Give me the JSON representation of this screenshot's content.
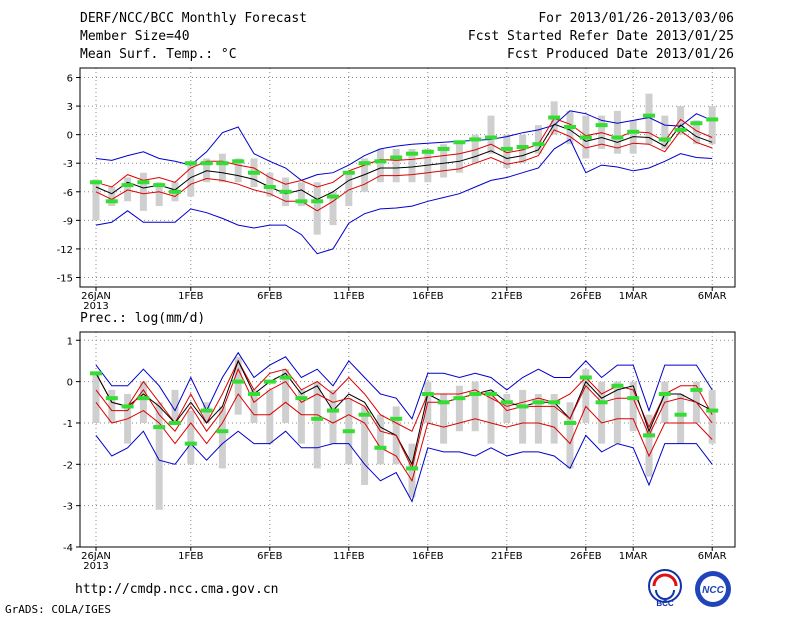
{
  "header": {
    "title": "DERF/NCC/BCC Monthly Forecast",
    "member": "Member Size=40",
    "variable": "Mean Surf. Temp.: °C",
    "period": "For 2013/01/26-2013/03/06",
    "started": "Fcst Started Refer Date 2013/01/25",
    "produced": "Fcst Produced Date 2013/01/26"
  },
  "prec_label": "Prec.: log(mm/d)",
  "footer": {
    "url": "http://cmdp.ncc.cma.gov.cn",
    "grads": "GrADS: COLA/IGES"
  },
  "logos": {
    "bcc": "BCC",
    "ncc": "NCC"
  },
  "colors": {
    "blue": "#0000cc",
    "red": "#dd0000",
    "black": "#000000",
    "green": "#33dd33",
    "gray": "#cfcfcf",
    "grid": "#888888"
  },
  "chart_data": [
    {
      "name": "temperature",
      "type": "line",
      "title": "Mean Surf. Temp.: °C",
      "ylim": [
        -16,
        7
      ],
      "yticks": [
        6,
        3,
        0,
        -3,
        -6,
        -9,
        -12,
        -15
      ],
      "x_tick_labels": [
        {
          "day": 0,
          "label": "26JAN",
          "sub": "2013"
        },
        {
          "day": 6,
          "label": "1FEB"
        },
        {
          "day": 11,
          "label": "6FEB"
        },
        {
          "day": 16,
          "label": "11FEB"
        },
        {
          "day": 21,
          "label": "16FEB"
        },
        {
          "day": 26,
          "label": "21FEB"
        },
        {
          "day": 31,
          "label": "26FEB"
        },
        {
          "day": 34,
          "label": "1MAR"
        },
        {
          "day": 39,
          "label": "6MAR"
        }
      ],
      "series": [
        {
          "name": "max",
          "color": "#0000cc",
          "values": [
            -2.5,
            -2.7,
            -2.2,
            -1.8,
            -2.5,
            -2.8,
            -3.2,
            -1.8,
            0.2,
            0.8,
            -2,
            -2.8,
            -3.5,
            -4.8,
            -4.2,
            -4,
            -3.2,
            -2.2,
            -1.5,
            -1.2,
            -1,
            -0.9,
            -0.8,
            -0.7,
            -0.6,
            -0.5,
            -0.2,
            0.2,
            0.5,
            1,
            2.5,
            2.2,
            1.5,
            1.2,
            1.5,
            1.8,
            1,
            0.9,
            2.2,
            1.5
          ]
        },
        {
          "name": "upper",
          "color": "#dd0000",
          "values": [
            -5,
            -5.5,
            -4.2,
            -4.8,
            -4.5,
            -5,
            -3.5,
            -2.8,
            -2.8,
            -3.2,
            -3.5,
            -4.5,
            -5.2,
            -4.8,
            -5.5,
            -5,
            -3.8,
            -3.2,
            -2.6,
            -2.7,
            -2.6,
            -2.4,
            -2.2,
            -2,
            -1.6,
            -1,
            -1.9,
            -1.6,
            -1,
            1.7,
            1.1,
            -0.1,
            0.2,
            -0.3,
            0.3,
            0.2,
            -0.7,
            1.6,
            0.4,
            -0.3
          ]
        },
        {
          "name": "mean",
          "color": "#000000",
          "values": [
            -5.5,
            -6.2,
            -5,
            -5.6,
            -5.3,
            -5.8,
            -4.5,
            -3.8,
            -4,
            -4.3,
            -4.7,
            -5.5,
            -6.2,
            -5.8,
            -6.8,
            -6,
            -4.8,
            -4.2,
            -3.5,
            -3.5,
            -3.4,
            -3.2,
            -3,
            -2.8,
            -2.3,
            -1.7,
            -2.5,
            -2.2,
            -1.6,
            1.1,
            0.5,
            -0.7,
            -0.3,
            -0.8,
            -0.2,
            -0.3,
            -1.2,
            1,
            -0.2,
            -0.8
          ]
        },
        {
          "name": "lower",
          "color": "#dd0000",
          "values": [
            -6,
            -6.8,
            -5.8,
            -6.2,
            -6,
            -6.5,
            -5.2,
            -4.6,
            -4.8,
            -5.2,
            -5.8,
            -6.2,
            -7,
            -7,
            -8,
            -7,
            -5.8,
            -5.2,
            -4.3,
            -4.3,
            -4.2,
            -4,
            -3.8,
            -3.6,
            -3,
            -2.4,
            -3.1,
            -2.8,
            -2.2,
            0.5,
            -0.2,
            -1.4,
            -1,
            -1.4,
            -0.9,
            -1,
            -1.8,
            0.4,
            -0.8,
            -1.4
          ]
        },
        {
          "name": "min",
          "color": "#0000cc",
          "values": [
            -9.5,
            -9.2,
            -8,
            -9.2,
            -9.2,
            -9.2,
            -7.8,
            -8.2,
            -8.8,
            -9.5,
            -9.8,
            -9.5,
            -9.5,
            -10.5,
            -12.5,
            -12,
            -9.3,
            -8.3,
            -7.8,
            -7.7,
            -7.5,
            -7,
            -6.6,
            -6.2,
            -5.5,
            -4.8,
            -4.5,
            -4,
            -3.5,
            -1.5,
            -0.5,
            -4,
            -3.2,
            -3.4,
            -3.8,
            -3.5,
            -2.8,
            -2,
            -2.4,
            -2.5
          ]
        }
      ],
      "bars": [
        [
          -9,
          -4.7
        ],
        [
          -7.5,
          -5.5
        ],
        [
          -7,
          -4.5
        ],
        [
          -8,
          -4
        ],
        [
          -7.5,
          -5
        ],
        [
          -7,
          -5
        ],
        [
          -6.5,
          -3
        ],
        [
          -5,
          -2.5
        ],
        [
          -5,
          -2
        ],
        [
          -5,
          -2.5
        ],
        [
          -5.5,
          -2.5
        ],
        [
          -6.5,
          -4
        ],
        [
          -7.5,
          -4.5
        ],
        [
          -7.5,
          -5
        ],
        [
          -10.5,
          -5
        ],
        [
          -9.5,
          -6
        ],
        [
          -7.5,
          -4
        ],
        [
          -6,
          -2.5
        ],
        [
          -5,
          -1.5
        ],
        [
          -5,
          -1.5
        ],
        [
          -5,
          -1.5
        ],
        [
          -5,
          -1.5
        ],
        [
          -4.5,
          -1
        ],
        [
          -4,
          -1
        ],
        [
          -3,
          0
        ],
        [
          -2,
          2
        ],
        [
          -3.5,
          0
        ],
        [
          -3,
          0
        ],
        [
          -2,
          1
        ],
        [
          0,
          3.5
        ],
        [
          -1,
          2.5
        ],
        [
          -2.5,
          2
        ],
        [
          -1.5,
          2
        ],
        [
          -2,
          2.5
        ],
        [
          -2,
          1.5
        ],
        [
          -1,
          4.3
        ],
        [
          -1.5,
          2
        ],
        [
          0,
          3
        ],
        [
          -1,
          1.5
        ],
        [
          -1,
          3
        ]
      ],
      "markers": [
        -5,
        -7,
        -5.3,
        -5,
        -5.3,
        -6,
        -3,
        -3,
        -3,
        -2.8,
        -4,
        -5.5,
        -6,
        -7,
        -7,
        -6.5,
        -4,
        -3,
        -2.8,
        -2.4,
        -2,
        -1.8,
        -1.5,
        -0.8,
        -0.5,
        -0.3,
        -1.5,
        -1.3,
        -1,
        1.8,
        0.8,
        -0.3,
        1,
        -0.3,
        0.3,
        2,
        -0.5,
        0.5,
        1.2,
        1.6
      ]
    },
    {
      "name": "precipitation",
      "type": "line",
      "title": "Prec.: log(mm/d)",
      "ylim": [
        -4,
        1.2
      ],
      "yticks": [
        1,
        0,
        -1,
        -2,
        -3,
        -4
      ],
      "x_tick_labels": [
        {
          "day": 0,
          "label": "26JAN",
          "sub": "2013"
        },
        {
          "day": 6,
          "label": "1FEB"
        },
        {
          "day": 11,
          "label": "6FEB"
        },
        {
          "day": 16,
          "label": "11FEB"
        },
        {
          "day": 21,
          "label": "16FEB"
        },
        {
          "day": 26,
          "label": "21FEB"
        },
        {
          "day": 31,
          "label": "26FEB"
        },
        {
          "day": 34,
          "label": "1MAR"
        },
        {
          "day": 39,
          "label": "6MAR"
        }
      ],
      "series": [
        {
          "name": "max",
          "color": "#0000cc",
          "values": [
            0.4,
            -0.1,
            -0.1,
            0.3,
            -0.1,
            -0.7,
            0.1,
            -0.7,
            0.1,
            0.7,
            0.1,
            0.4,
            0.6,
            0.1,
            0.3,
            -0.1,
            0.5,
            0.1,
            -0.3,
            -0.4,
            -0.9,
            0.2,
            0.2,
            0.1,
            0.2,
            0.1,
            -0.2,
            0.1,
            0.3,
            0.1,
            0.1,
            0.5,
            0.1,
            0.4,
            0.4,
            -0.7,
            0.4,
            0.4,
            0.4,
            -0.2
          ]
        },
        {
          "name": "upper",
          "color": "#dd0000",
          "values": [
            0.2,
            -0.5,
            -0.6,
            0,
            -0.5,
            -1,
            -0.3,
            -1,
            -0.3,
            0.5,
            -0.2,
            0.2,
            0.3,
            -0.2,
            0,
            -0.3,
            0.1,
            -0.3,
            -0.8,
            -1,
            -1.2,
            -0.3,
            -0.3,
            -0.3,
            -0.2,
            -0.4,
            -0.6,
            -0.5,
            -0.4,
            -0.5,
            -0.3,
            0.1,
            -0.3,
            -0.1,
            -0.2,
            -1.1,
            -0.3,
            -0.1,
            -0.1,
            -0.8
          ]
        },
        {
          "name": "mean",
          "color": "#000000",
          "values": [
            0.2,
            -0.5,
            -0.6,
            -0.3,
            -0.6,
            -1,
            -0.5,
            -1,
            -0.6,
            0.5,
            -0.3,
            0,
            0.2,
            -0.3,
            -0.1,
            -0.7,
            -0.3,
            -0.5,
            -1.1,
            -1.3,
            -2,
            -0.3,
            -0.5,
            -0.4,
            -0.3,
            -0.2,
            -0.5,
            -0.6,
            -0.5,
            -0.5,
            -0.9,
            0,
            -0.4,
            -0.2,
            -0.1,
            -1.2,
            -0.3,
            -0.3,
            -0.5,
            -0.7
          ]
        },
        {
          "name": "lower",
          "color": "#dd0000",
          "values": [
            -0.5,
            -1,
            -0.9,
            -0.7,
            -1,
            -1.5,
            -1,
            -1.5,
            -1,
            -0.3,
            -0.8,
            -0.8,
            -0.5,
            -0.8,
            -0.8,
            -1,
            -0.8,
            -1,
            -1.6,
            -1.8,
            -2.4,
            -1,
            -1.1,
            -1,
            -0.9,
            -1,
            -1.1,
            -1,
            -1,
            -1.1,
            -1.5,
            -0.6,
            -1,
            -0.9,
            -0.9,
            -1.8,
            -1,
            -1,
            -1,
            -1.4
          ]
        },
        {
          "name": "min",
          "color": "#0000cc",
          "values": [
            -1.3,
            -1.8,
            -1.6,
            -1.2,
            -1.9,
            -2,
            -1.5,
            -1.9,
            -1.5,
            -1.2,
            -1.5,
            -1.5,
            -1.2,
            -1.6,
            -1.6,
            -1.5,
            -1.5,
            -2,
            -2.4,
            -2.2,
            -2.9,
            -1.6,
            -1.7,
            -1.7,
            -1.8,
            -1.6,
            -1.8,
            -1.7,
            -1.7,
            -1.8,
            -2.1,
            -1.3,
            -1.7,
            -1.5,
            -1.6,
            -2.5,
            -1.5,
            -1.5,
            -1.5,
            -2
          ]
        },
        {
          "name": "extra",
          "color": "#dd0000",
          "values": [
            -0.2,
            -0.7,
            -0.7,
            -0.2,
            -0.8,
            -1.2,
            -0.6,
            -1.2,
            -0.7,
            0.3,
            -0.5,
            -0.2,
            0,
            -0.5,
            -0.3,
            -0.5,
            -0.4,
            -0.6,
            -1.2,
            -1.3,
            -2.1,
            -0.5,
            -0.5,
            -0.4,
            -0.3,
            -0.3,
            -0.7,
            -0.6,
            -0.6,
            -0.6,
            -0.9,
            -0.1,
            -0.5,
            -0.4,
            -0.4,
            -1.3,
            -0.5,
            -0.4,
            -0.5,
            -1
          ]
        }
      ],
      "bars": [
        [
          -1,
          0.2
        ],
        [
          -1,
          -0.2
        ],
        [
          -1.5,
          -0.3
        ],
        [
          -1,
          0
        ],
        [
          -3.1,
          -0.5
        ],
        [
          -1,
          -0.2
        ],
        [
          -2,
          -0.7
        ],
        [
          -1,
          -0.5
        ],
        [
          -2.1,
          -0.6
        ],
        [
          -0.8,
          0.6
        ],
        [
          -1,
          -0.2
        ],
        [
          -1.5,
          -0.2
        ],
        [
          -1,
          0.3
        ],
        [
          -1.5,
          -0.2
        ],
        [
          -2.1,
          0
        ],
        [
          -1.5,
          -0.2
        ],
        [
          -2,
          -0.4
        ],
        [
          -2.5,
          -0.6
        ],
        [
          -2,
          -0.8
        ],
        [
          -2,
          -0.6
        ],
        [
          -2.8,
          -1.5
        ],
        [
          -1,
          0
        ],
        [
          -1.5,
          -0.3
        ],
        [
          -1.2,
          -0.1
        ],
        [
          -1.2,
          0
        ],
        [
          -1.5,
          -0.2
        ],
        [
          -1,
          -0.3
        ],
        [
          -1.5,
          -0.2
        ],
        [
          -1.5,
          -0.3
        ],
        [
          -1.5,
          -0.3
        ],
        [
          -2.1,
          -0.5
        ],
        [
          -1,
          0.3
        ],
        [
          -1.5,
          0
        ],
        [
          -1.5,
          0
        ],
        [
          -1.2,
          0
        ],
        [
          -2.3,
          -0.8
        ],
        [
          -1,
          0
        ],
        [
          -1.5,
          -0.3
        ],
        [
          -1,
          0
        ],
        [
          -1.5,
          -0.2
        ]
      ],
      "markers": [
        0.2,
        -0.4,
        -0.6,
        -0.4,
        -1.1,
        -1,
        -1.5,
        -0.7,
        -1.2,
        0,
        -0.3,
        0,
        0.1,
        -0.4,
        -0.9,
        -0.7,
        -1.2,
        -0.8,
        -1.6,
        -0.9,
        -2.1,
        -0.3,
        -0.5,
        -0.4,
        -0.3,
        -0.3,
        -0.5,
        -0.6,
        -0.5,
        -0.5,
        -1,
        0.1,
        -0.5,
        -0.1,
        -0.4,
        -1.3,
        -0.3,
        -0.8,
        -0.2,
        -0.7
      ]
    }
  ]
}
